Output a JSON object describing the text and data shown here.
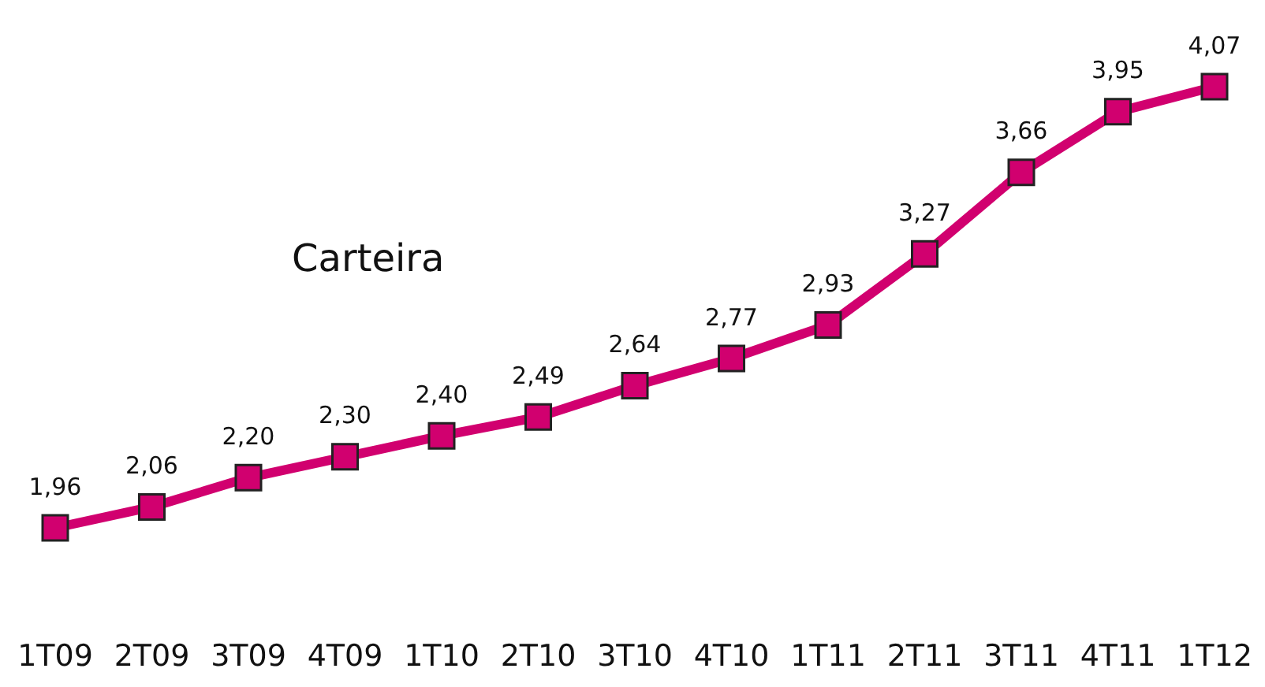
{
  "chart_data": {
    "type": "line",
    "categories": [
      "1T09",
      "2T09",
      "3T09",
      "4T09",
      "1T10",
      "2T10",
      "3T10",
      "4T10",
      "1T11",
      "2T11",
      "3T11",
      "4T11",
      "1T12"
    ],
    "series": [
      {
        "name": "Carteira",
        "color": "#d1006f",
        "values": [
          1.96,
          2.06,
          2.2,
          2.3,
          2.4,
          2.49,
          2.64,
          2.77,
          2.93,
          3.27,
          3.66,
          3.95,
          4.07
        ],
        "value_labels": [
          "1,96",
          "2,06",
          "2,20",
          "2,30",
          "2,40",
          "2,49",
          "2,64",
          "2,77",
          "2,93",
          "3,27",
          "3,66",
          "3,95",
          "4,07"
        ]
      }
    ],
    "marker": "square",
    "grid": false,
    "legend": false
  }
}
